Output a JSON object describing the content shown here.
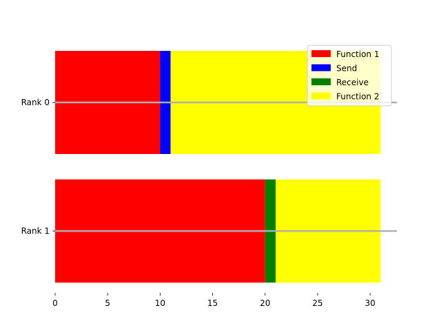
{
  "chart_data": {
    "type": "bar",
    "orientation": "horizontal",
    "stacked": true,
    "categories": [
      "Rank 0",
      "Rank 1"
    ],
    "segments": [
      [
        {
          "series": "Function 1",
          "start": 0,
          "end": 10
        },
        {
          "series": "Send",
          "start": 10,
          "end": 11
        },
        {
          "series": "Function 2",
          "start": 11,
          "end": 31
        }
      ],
      [
        {
          "series": "Function 1",
          "start": 0,
          "end": 20
        },
        {
          "series": "Receive",
          "start": 20,
          "end": 21
        },
        {
          "series": "Function 2",
          "start": 21,
          "end": 31
        }
      ]
    ],
    "series": [
      {
        "name": "Function 1",
        "color": "#ff0000"
      },
      {
        "name": "Send",
        "color": "#0000ff"
      },
      {
        "name": "Receive",
        "color": "#008000"
      },
      {
        "name": "Function 2",
        "color": "#ffff00"
      }
    ],
    "xticks": [
      0,
      5,
      10,
      15,
      20,
      25,
      30
    ],
    "xlim": [
      0,
      32.55
    ],
    "title": "",
    "xlabel": "",
    "ylabel": "",
    "grid": false,
    "legend_position": "top-right",
    "rank_line_color": "#b0b0b0"
  }
}
